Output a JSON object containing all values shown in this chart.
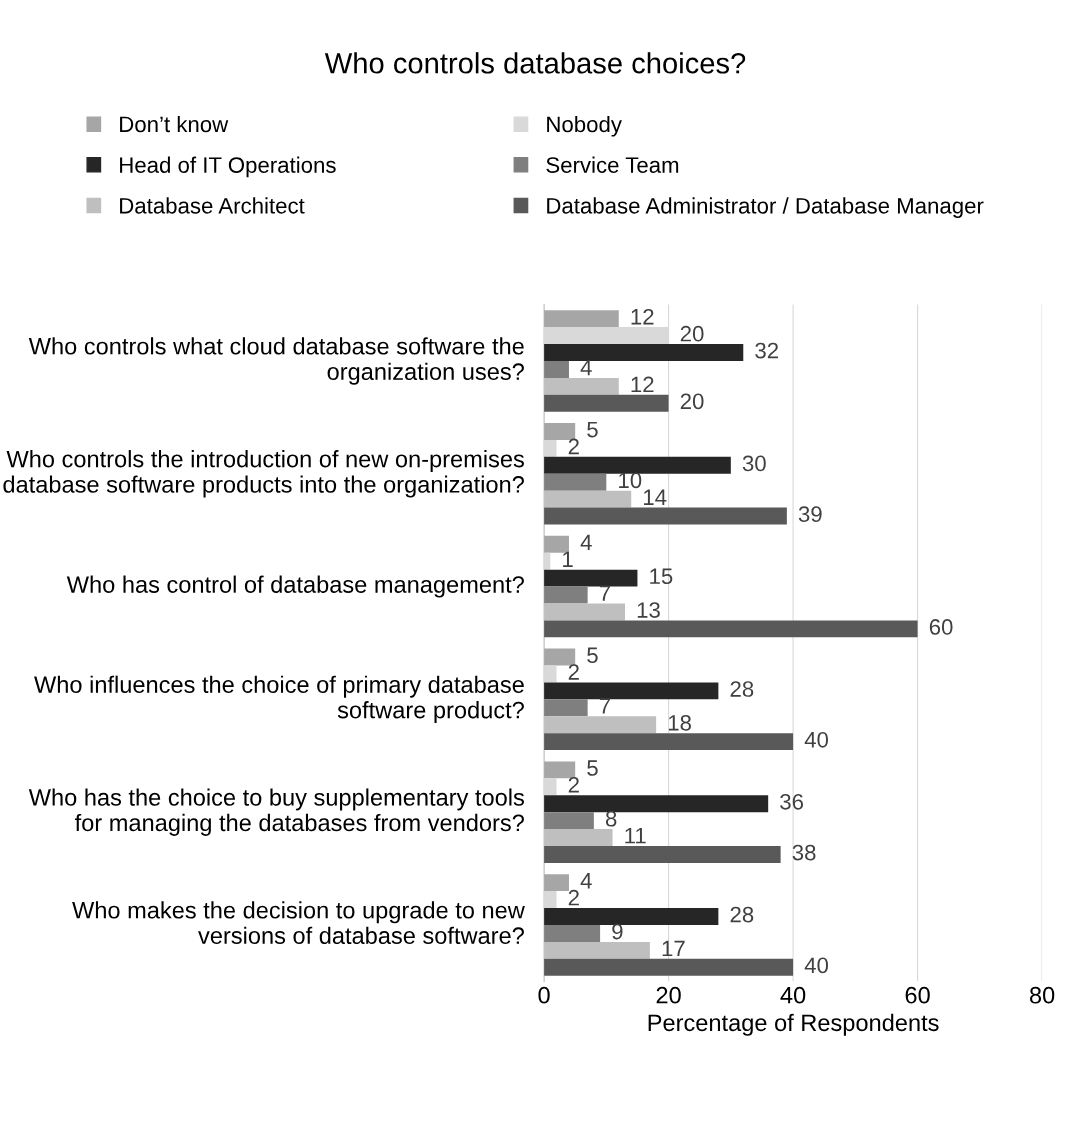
{
  "chart_data": {
    "type": "bar",
    "orientation": "horizontal",
    "title": "Who controls database choices?",
    "xlabel": "Percentage of Respondents",
    "categories": [
      "Who controls what cloud database software the organization uses?",
      "Who controls the introduction of new on-premises database software products into the organization?",
      "Who has control of database management?",
      "Who influences the choice of primary database software product?",
      "Who has the choice to buy supplementary tools for managing the databases from vendors?",
      "Who makes the decision to upgrade to new versions of database software?"
    ],
    "series": [
      {
        "name": "Don’t know",
        "color": "#a6a6a6",
        "values": [
          12,
          5,
          4,
          5,
          5,
          4
        ]
      },
      {
        "name": "Nobody",
        "color": "#d9d9d9",
        "values": [
          20,
          2,
          1,
          2,
          2,
          2
        ]
      },
      {
        "name": "Head of IT Operations",
        "color": "#262626",
        "values": [
          32,
          30,
          15,
          28,
          36,
          28
        ]
      },
      {
        "name": "Service Team",
        "color": "#7f7f7f",
        "values": [
          4,
          10,
          7,
          7,
          8,
          9
        ]
      },
      {
        "name": "Database Architect",
        "color": "#bfbfbf",
        "values": [
          12,
          14,
          13,
          18,
          11,
          17
        ]
      },
      {
        "name": "Database Administrator / Database Manager",
        "color": "#595959",
        "values": [
          20,
          39,
          60,
          40,
          38,
          40
        ]
      }
    ],
    "xlim": [
      0,
      80
    ],
    "xticks": [
      0,
      20,
      40,
      60,
      80
    ],
    "grid": "x",
    "legend": "top",
    "data_labels": true
  }
}
